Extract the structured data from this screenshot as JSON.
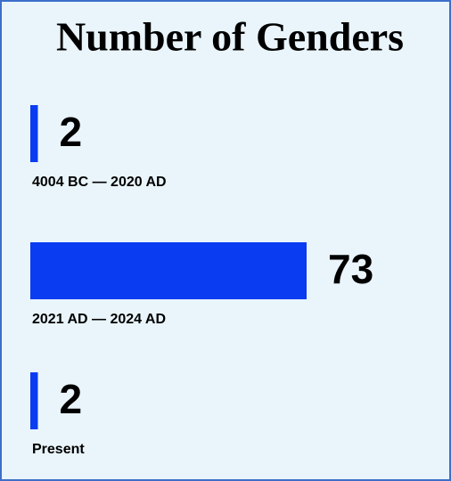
{
  "chart_data": {
    "type": "bar",
    "orientation": "horizontal",
    "title": "Number of Genders",
    "categories": [
      "4004 BC — 2020 AD",
      "2021 AD — 2024 AD",
      "Present"
    ],
    "values": [
      2,
      73,
      2
    ],
    "color": "#0a3cf2"
  }
}
